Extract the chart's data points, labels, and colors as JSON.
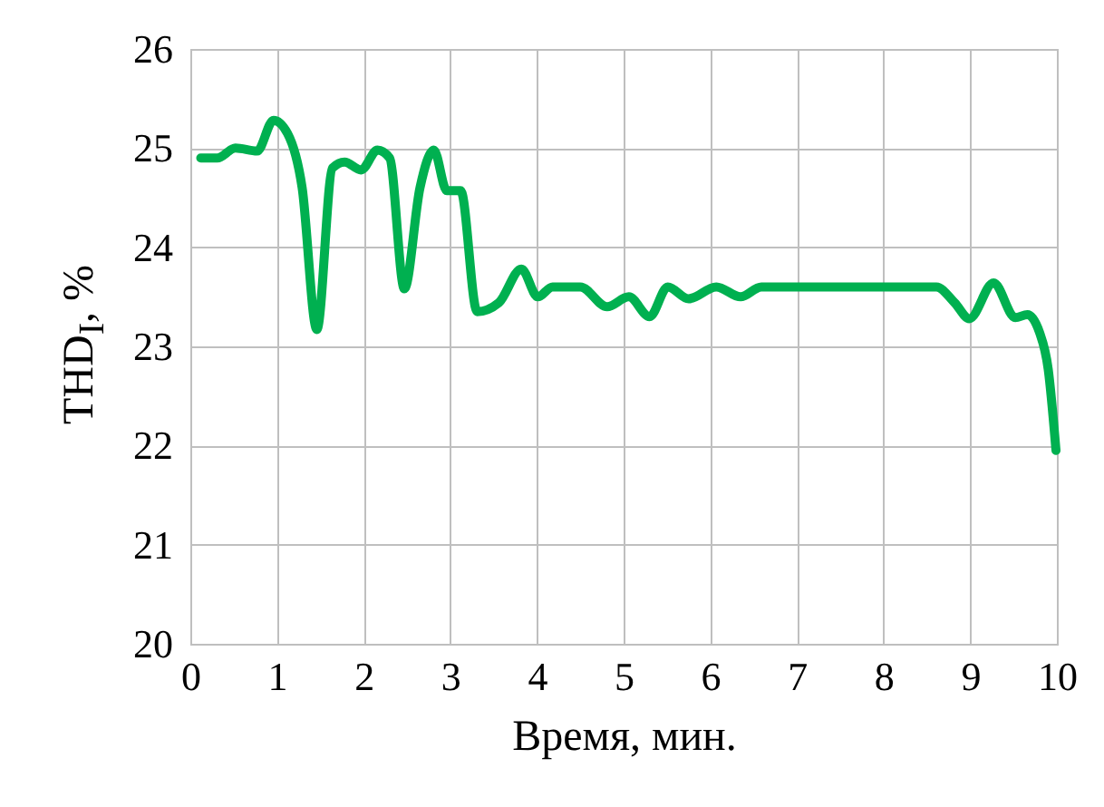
{
  "chart_data": {
    "type": "line",
    "xlabel": "Время, мин.",
    "ylabel": "THD$_{I}$, %",
    "xlim": [
      0,
      10
    ],
    "xticks": [
      0,
      1,
      2,
      3,
      4,
      5,
      6,
      7,
      8,
      9,
      10
    ],
    "ylim": [
      20,
      26
    ],
    "yticks": [
      20,
      21,
      22,
      23,
      24,
      25,
      26
    ],
    "grid": true,
    "series": [
      {
        "color": "#00b050",
        "x": [
          0.12,
          0.31,
          0.52,
          0.77,
          0.96,
          1.12,
          1.29,
          1.46,
          1.64,
          1.78,
          1.97,
          2.16,
          2.3,
          2.47,
          2.65,
          2.81,
          2.96,
          3.12,
          3.31,
          3.56,
          3.82,
          4.01,
          4.18,
          4.5,
          4.81,
          5.06,
          5.3,
          5.51,
          5.75,
          6.07,
          6.35,
          6.59,
          8.61,
          8.82,
          8.99,
          9.27,
          9.52,
          9.66,
          9.8,
          9.9,
          9.99
        ],
        "values": [
          24.9,
          24.9,
          25.0,
          24.97,
          25.28,
          25.15,
          24.6,
          23.17,
          24.8,
          24.86,
          24.78,
          24.98,
          24.9,
          23.58,
          24.6,
          24.98,
          24.57,
          24.57,
          23.35,
          23.44,
          23.78,
          23.5,
          23.6,
          23.6,
          23.4,
          23.5,
          23.3,
          23.6,
          23.48,
          23.6,
          23.5,
          23.6,
          23.6,
          23.44,
          23.28,
          23.64,
          23.29,
          23.32,
          23.14,
          22.77,
          21.95
        ]
      }
    ]
  }
}
